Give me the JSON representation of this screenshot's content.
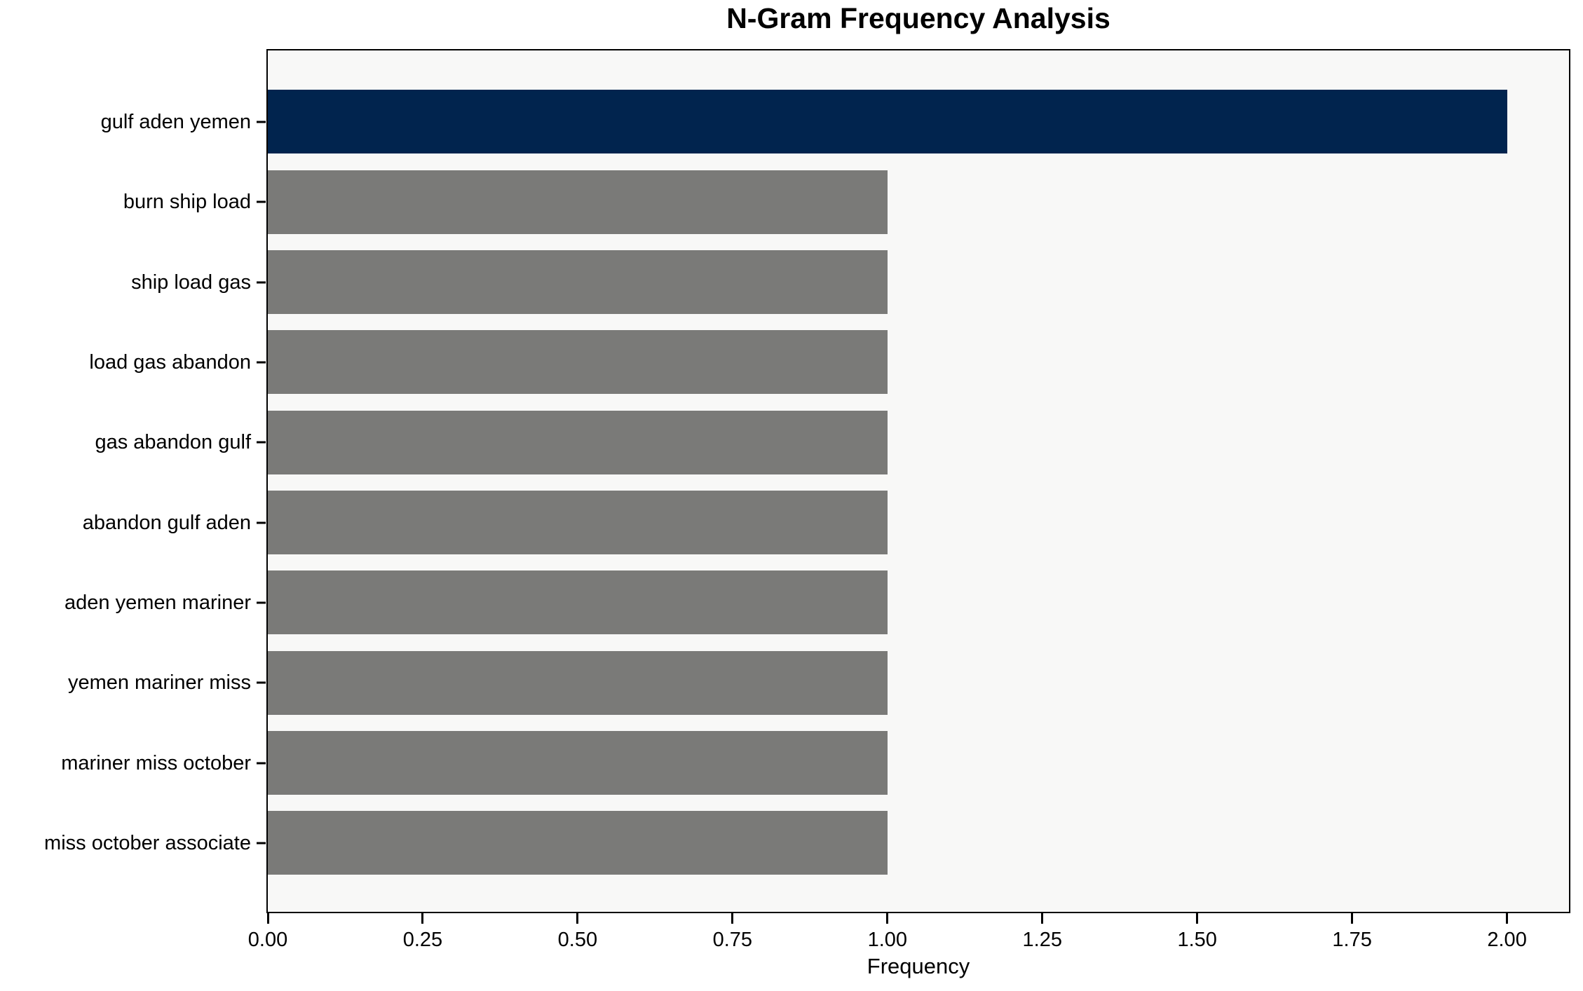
{
  "chart_data": {
    "type": "bar",
    "orientation": "horizontal",
    "title": "N-Gram Frequency Analysis",
    "xlabel": "Frequency",
    "ylabel": "",
    "categories": [
      "gulf aden yemen",
      "burn ship load",
      "ship load gas",
      "load gas abandon",
      "gas abandon gulf",
      "abandon gulf aden",
      "aden yemen mariner",
      "yemen mariner miss",
      "mariner miss october",
      "miss october associate"
    ],
    "values": [
      2,
      1,
      1,
      1,
      1,
      1,
      1,
      1,
      1,
      1
    ],
    "bar_colors": [
      "#01244e",
      "#7a7a78",
      "#7a7a78",
      "#7a7a78",
      "#7a7a78",
      "#7a7a78",
      "#7a7a78",
      "#7a7a78",
      "#7a7a78",
      "#7a7a78"
    ],
    "xlim": [
      0,
      2.1
    ],
    "xticks": [
      "0.00",
      "0.25",
      "0.50",
      "0.75",
      "1.00",
      "1.25",
      "1.50",
      "1.75",
      "2.00"
    ],
    "xtick_values": [
      0,
      0.25,
      0.5,
      0.75,
      1.0,
      1.25,
      1.5,
      1.75,
      2.0
    ],
    "grid": false,
    "legend": null,
    "colors": {
      "highlight_bar": "#01244e",
      "default_bar": "#7a7a78",
      "plot_background": "#f8f8f7",
      "figure_background": "#ffffff",
      "spine": "#000000",
      "text": "#000000"
    }
  }
}
